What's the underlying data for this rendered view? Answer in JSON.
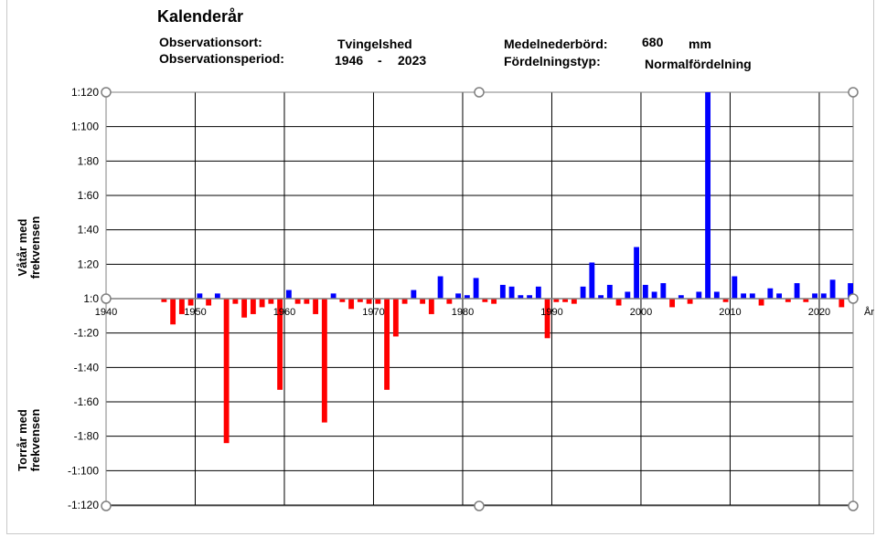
{
  "header": {
    "title": "Kalenderår",
    "site_label": "Observationsort:",
    "site_value": "Tvingelshed",
    "period_label": "Observationsperiod:",
    "period_start": "1946",
    "period_sep": "-",
    "period_end": "2023",
    "mean_label": "Medelnederbörd:",
    "mean_value": "680",
    "mean_unit": "mm",
    "dist_label": "Fördelningstyp:",
    "dist_value": "Normalfördelning"
  },
  "y_label_wet": [
    "Våtår med",
    "frekvensen"
  ],
  "y_label_dry": [
    "Torrår med",
    "frekvensen"
  ],
  "colors": {
    "wet": "#0000ff",
    "dry": "#ff0000",
    "grid": "#000000",
    "axis": "#808080"
  },
  "chart_data": {
    "type": "bar",
    "title": "Kalenderår",
    "xlabel": "År",
    "ylim": [
      -120,
      120
    ],
    "xlim": [
      1940,
      2023
    ],
    "y_ticks": [
      {
        "v": 120,
        "label": "1:120"
      },
      {
        "v": 100,
        "label": "1:100"
      },
      {
        "v": 80,
        "label": "1:80"
      },
      {
        "v": 60,
        "label": "1:60"
      },
      {
        "v": 40,
        "label": "1:40"
      },
      {
        "v": 20,
        "label": "1:20"
      },
      {
        "v": 0,
        "label": "1:0"
      },
      {
        "v": -20,
        "label": "-1:20"
      },
      {
        "v": -40,
        "label": "-1:40"
      },
      {
        "v": -60,
        "label": "-1:60"
      },
      {
        "v": -80,
        "label": "-1:80"
      },
      {
        "v": -100,
        "label": "-1:100"
      },
      {
        "v": -120,
        "label": "-1:120"
      }
    ],
    "x_ticks": [
      {
        "v": 1940,
        "label": "1940"
      },
      {
        "v": 1950,
        "label": "1950"
      },
      {
        "v": 1960,
        "label": "1960"
      },
      {
        "v": 1970,
        "label": "1970"
      },
      {
        "v": 1980,
        "label": "1980"
      },
      {
        "v": 1990,
        "label": "1990"
      },
      {
        "v": 2000,
        "label": "2000"
      },
      {
        "v": 2010,
        "label": "2010"
      },
      {
        "v": 2020,
        "label": "2020"
      }
    ],
    "years": [
      1946,
      1947,
      1948,
      1949,
      1950,
      1951,
      1952,
      1953,
      1954,
      1955,
      1956,
      1957,
      1958,
      1959,
      1960,
      1961,
      1962,
      1963,
      1964,
      1965,
      1966,
      1967,
      1968,
      1969,
      1970,
      1971,
      1972,
      1973,
      1974,
      1975,
      1976,
      1977,
      1978,
      1979,
      1980,
      1981,
      1982,
      1983,
      1984,
      1985,
      1986,
      1987,
      1988,
      1989,
      1990,
      1991,
      1992,
      1993,
      1994,
      1995,
      1996,
      1997,
      1998,
      1999,
      2000,
      2001,
      2002,
      2003,
      2004,
      2005,
      2006,
      2007,
      2008,
      2009,
      2010,
      2011,
      2012,
      2013,
      2014,
      2015,
      2016,
      2017,
      2018,
      2019,
      2020,
      2021,
      2022,
      2023
    ],
    "values": [
      -2,
      -15,
      -9,
      -4,
      3,
      -4,
      3,
      -84,
      -3,
      -11,
      -9,
      -5,
      -3,
      -53,
      5,
      -3,
      -3,
      -9,
      -72,
      3,
      -2,
      -6,
      -2,
      -3,
      -3,
      -53,
      -22,
      -3,
      5,
      -3,
      -9,
      13,
      -3,
      3,
      2,
      12,
      -2,
      -3,
      8,
      7,
      2,
      2,
      7,
      -23,
      -2,
      -2,
      -3,
      7,
      21,
      2,
      8,
      -4,
      4,
      30,
      8,
      4,
      9,
      -5,
      2,
      -3,
      4,
      120,
      4,
      -2,
      13,
      3,
      3,
      -4,
      6,
      3,
      -2,
      9,
      -2,
      3,
      3,
      11,
      -5,
      9
    ]
  }
}
